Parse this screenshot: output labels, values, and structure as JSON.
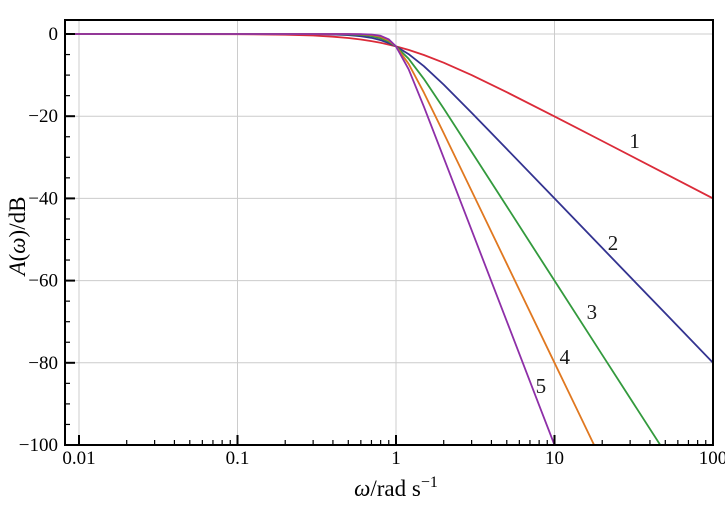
{
  "chart_data": {
    "type": "line",
    "title": "",
    "xlabel": "ω/rad s⁻¹",
    "ylabel": "A(ω)/dB",
    "xlabel_parts": [
      {
        "t": "ω",
        "italic": true
      },
      {
        "t": "/rad s",
        "italic": false
      },
      {
        "t": "−1",
        "sup": true
      }
    ],
    "ylabel_parts": [
      {
        "t": "A",
        "italic": true
      },
      {
        "t": "(",
        "italic": false
      },
      {
        "t": "ω",
        "italic": true
      },
      {
        "t": ")/dB",
        "italic": false
      }
    ],
    "x_axis": {
      "scale": "log",
      "min": 0.0082,
      "max": 100,
      "ticks": [
        0.01,
        0.1,
        1,
        10,
        100
      ],
      "tick_labels": [
        "0.01",
        "0.1",
        "1",
        "10",
        "100"
      ],
      "minor_ticks_per_decade": [
        2,
        3,
        4,
        5,
        6,
        7,
        8,
        9
      ]
    },
    "y_axis": {
      "scale": "linear",
      "min": -100,
      "max": 3.4,
      "ticks": [
        0,
        -20,
        -40,
        -60,
        -80,
        -100
      ],
      "tick_labels": [
        "0",
        "−20",
        "−40",
        "−60",
        "−80",
        "−100"
      ],
      "minor_step": 5
    },
    "grid": true,
    "grid_color": "#cccccc",
    "frame_color": "#000000",
    "background_color": "#ffffff",
    "description": "Butterworth low-pass filter gain A(ω) = −10·log10(1 + ω^(2n)) dB for orders n = 1…5; −3 dB at ω = 1, asymptotic slope −20·n dB/decade",
    "series": [
      {
        "name": "1",
        "order": 1,
        "color": "#db2b39",
        "points": [
          [
            0.008,
            0
          ],
          [
            0.1,
            -0.043
          ],
          [
            0.2,
            -0.17
          ],
          [
            0.3,
            -0.374
          ],
          [
            0.4,
            -0.645
          ],
          [
            0.5,
            -0.969
          ],
          [
            0.6,
            -1.335
          ],
          [
            0.7,
            -1.732
          ],
          [
            0.8,
            -2.148
          ],
          [
            0.9,
            -2.577
          ],
          [
            1,
            -3.01
          ],
          [
            1.2,
            -3.87
          ],
          [
            1.5,
            -5.12
          ],
          [
            2,
            -6.99
          ],
          [
            3,
            -10.0
          ],
          [
            5,
            -14.15
          ],
          [
            10,
            -20.04
          ],
          [
            20,
            -26.03
          ],
          [
            50,
            -33.98
          ],
          [
            100,
            -40.0
          ]
        ]
      },
      {
        "name": "2",
        "order": 2,
        "color": "#333390",
        "points": [
          [
            0.008,
            0
          ],
          [
            0.2,
            -0.007
          ],
          [
            0.3,
            -0.035
          ],
          [
            0.4,
            -0.11
          ],
          [
            0.5,
            -0.263
          ],
          [
            0.6,
            -0.53
          ],
          [
            0.7,
            -0.935
          ],
          [
            0.8,
            -1.491
          ],
          [
            0.9,
            -2.191
          ],
          [
            1,
            -3.01
          ],
          [
            1.2,
            -4.88
          ],
          [
            1.5,
            -7.83
          ],
          [
            2,
            -12.3
          ],
          [
            3,
            -19.14
          ],
          [
            5,
            -27.97
          ],
          [
            10,
            -40.0
          ],
          [
            20,
            -52.04
          ],
          [
            50,
            -67.96
          ],
          [
            100,
            -80.0
          ]
        ]
      },
      {
        "name": "3",
        "order": 3,
        "color": "#339a3d",
        "points": [
          [
            0.008,
            0
          ],
          [
            0.3,
            -0.003
          ],
          [
            0.4,
            -0.018
          ],
          [
            0.5,
            -0.067
          ],
          [
            0.6,
            -0.198
          ],
          [
            0.7,
            -0.483
          ],
          [
            0.8,
            -1.011
          ],
          [
            0.9,
            -1.851
          ],
          [
            1,
            -3.01
          ],
          [
            1.2,
            -6.01
          ],
          [
            1.5,
            -10.93
          ],
          [
            2,
            -18.13
          ],
          [
            3,
            -28.63
          ],
          [
            5,
            -41.94
          ],
          [
            7,
            -50.71
          ],
          [
            10,
            -60.0
          ],
          [
            20,
            -78.06
          ],
          [
            50,
            -101.9
          ]
        ]
      },
      {
        "name": "4",
        "order": 4,
        "color": "#e07820",
        "points": [
          [
            0.008,
            0
          ],
          [
            0.4,
            -0.003
          ],
          [
            0.5,
            -0.017
          ],
          [
            0.6,
            -0.072
          ],
          [
            0.7,
            -0.243
          ],
          [
            0.8,
            -0.674
          ],
          [
            0.9,
            -1.554
          ],
          [
            1,
            -3.01
          ],
          [
            1.2,
            -7.24
          ],
          [
            1.5,
            -14.25
          ],
          [
            2,
            -24.1
          ],
          [
            3,
            -38.17
          ],
          [
            5,
            -55.92
          ],
          [
            10,
            -80.0
          ],
          [
            14,
            -91.7
          ],
          [
            20,
            -104.1
          ]
        ]
      },
      {
        "name": "5",
        "order": 5,
        "color": "#8e2fa8",
        "points": [
          [
            0.008,
            0
          ],
          [
            0.5,
            -0.004
          ],
          [
            0.6,
            -0.026
          ],
          [
            0.7,
            -0.121
          ],
          [
            0.8,
            -0.443
          ],
          [
            0.9,
            -1.297
          ],
          [
            1,
            -3.01
          ],
          [
            1.2,
            -8.57
          ],
          [
            1.5,
            -17.68
          ],
          [
            2,
            -30.11
          ],
          [
            3,
            -47.71
          ],
          [
            5,
            -69.9
          ],
          [
            8,
            -90.31
          ],
          [
            10,
            -100.0
          ],
          [
            11,
            -104.1
          ]
        ]
      }
    ],
    "annotations": [
      {
        "text": "1",
        "omega": 32.0,
        "db": -26.0
      },
      {
        "text": "2",
        "omega": 23.4,
        "db": -50.9
      },
      {
        "text": "3",
        "omega": 17.2,
        "db": -67.6
      },
      {
        "text": "4",
        "omega": 11.6,
        "db": -78.6
      },
      {
        "text": "5",
        "omega": 8.2,
        "db": -85.6
      }
    ]
  }
}
